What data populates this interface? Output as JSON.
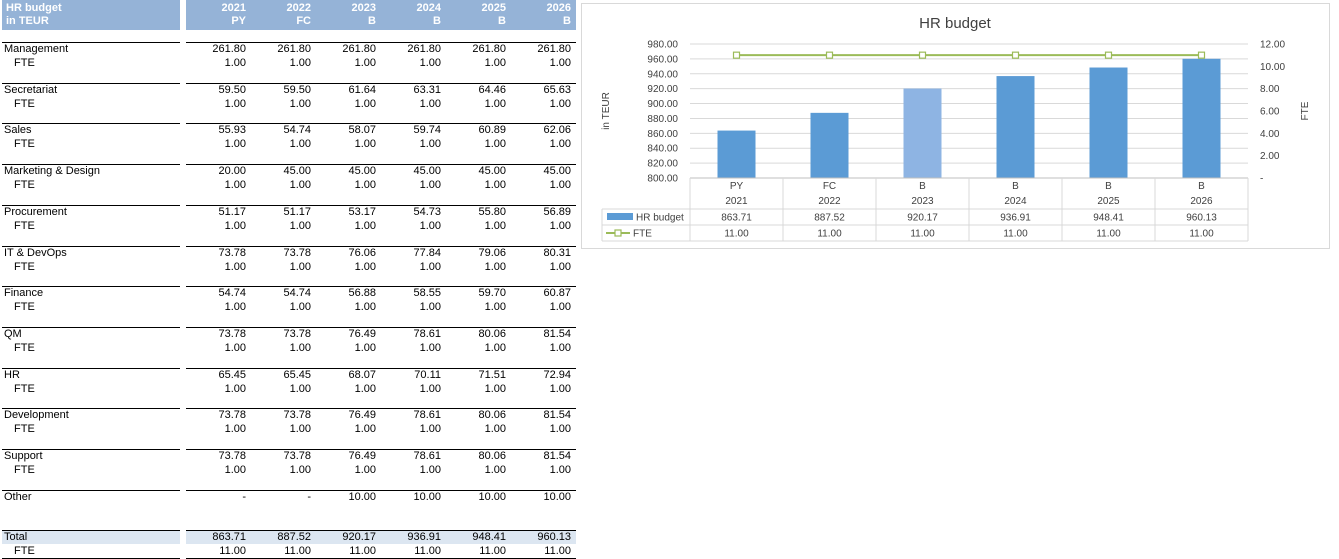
{
  "table": {
    "header_label_line1": "HR budget",
    "header_label_line2": "in TEUR",
    "years": [
      "2021",
      "2022",
      "2023",
      "2024",
      "2025",
      "2026"
    ],
    "types": [
      "PY",
      "FC",
      "B",
      "B",
      "B",
      "B"
    ],
    "rows": [
      {
        "label": "Management",
        "values": [
          "261.80",
          "261.80",
          "261.80",
          "261.80",
          "261.80",
          "261.80"
        ],
        "fte_label": "FTE",
        "fte": [
          "1.00",
          "1.00",
          "1.00",
          "1.00",
          "1.00",
          "1.00"
        ]
      },
      {
        "label": "Secretariat",
        "values": [
          "59.50",
          "59.50",
          "61.64",
          "63.31",
          "64.46",
          "65.63"
        ],
        "fte_label": "FTE",
        "fte": [
          "1.00",
          "1.00",
          "1.00",
          "1.00",
          "1.00",
          "1.00"
        ]
      },
      {
        "label": "Sales",
        "values": [
          "55.93",
          "54.74",
          "58.07",
          "59.74",
          "60.89",
          "62.06"
        ],
        "fte_label": "FTE",
        "fte": [
          "1.00",
          "1.00",
          "1.00",
          "1.00",
          "1.00",
          "1.00"
        ]
      },
      {
        "label": "Marketing & Design",
        "values": [
          "20.00",
          "45.00",
          "45.00",
          "45.00",
          "45.00",
          "45.00"
        ],
        "fte_label": "FTE",
        "fte": [
          "1.00",
          "1.00",
          "1.00",
          "1.00",
          "1.00",
          "1.00"
        ]
      },
      {
        "label": "Procurement",
        "values": [
          "51.17",
          "51.17",
          "53.17",
          "54.73",
          "55.80",
          "56.89"
        ],
        "fte_label": "FTE",
        "fte": [
          "1.00",
          "1.00",
          "1.00",
          "1.00",
          "1.00",
          "1.00"
        ]
      },
      {
        "label": "IT & DevOps",
        "values": [
          "73.78",
          "73.78",
          "76.06",
          "77.84",
          "79.06",
          "80.31"
        ],
        "fte_label": "FTE",
        "fte": [
          "1.00",
          "1.00",
          "1.00",
          "1.00",
          "1.00",
          "1.00"
        ]
      },
      {
        "label": "Finance",
        "values": [
          "54.74",
          "54.74",
          "56.88",
          "58.55",
          "59.70",
          "60.87"
        ],
        "fte_label": "FTE",
        "fte": [
          "1.00",
          "1.00",
          "1.00",
          "1.00",
          "1.00",
          "1.00"
        ]
      },
      {
        "label": "QM",
        "values": [
          "73.78",
          "73.78",
          "76.49",
          "78.61",
          "80.06",
          "81.54"
        ],
        "fte_label": "FTE",
        "fte": [
          "1.00",
          "1.00",
          "1.00",
          "1.00",
          "1.00",
          "1.00"
        ]
      },
      {
        "label": "HR",
        "values": [
          "65.45",
          "65.45",
          "68.07",
          "70.11",
          "71.51",
          "72.94"
        ],
        "fte_label": "FTE",
        "fte": [
          "1.00",
          "1.00",
          "1.00",
          "1.00",
          "1.00",
          "1.00"
        ]
      },
      {
        "label": "Development",
        "values": [
          "73.78",
          "73.78",
          "76.49",
          "78.61",
          "80.06",
          "81.54"
        ],
        "fte_label": "FTE",
        "fte": [
          "1.00",
          "1.00",
          "1.00",
          "1.00",
          "1.00",
          "1.00"
        ]
      },
      {
        "label": "Support",
        "values": [
          "73.78",
          "73.78",
          "76.49",
          "78.61",
          "80.06",
          "81.54"
        ],
        "fte_label": "FTE",
        "fte": [
          "1.00",
          "1.00",
          "1.00",
          "1.00",
          "1.00",
          "1.00"
        ]
      },
      {
        "label": "Other",
        "values": [
          "-",
          "-",
          "10.00",
          "10.00",
          "10.00",
          "10.00"
        ]
      }
    ],
    "total": {
      "label": "Total",
      "values": [
        "863.71",
        "887.52",
        "920.17",
        "936.91",
        "948.41",
        "960.13"
      ],
      "fte_label": "FTE",
      "fte": [
        "11.00",
        "11.00",
        "11.00",
        "11.00",
        "11.00",
        "11.00"
      ]
    }
  },
  "chart_data": {
    "type": "bar",
    "title": "HR budget",
    "ylabel": "in TEUR",
    "y2label": "FTE",
    "categories": [
      "PY 2021",
      "FC 2022",
      "B 2023",
      "B 2024",
      "B 2025",
      "B 2026"
    ],
    "category_line1": [
      "PY",
      "FC",
      "B",
      "B",
      "B",
      "B"
    ],
    "category_line2": [
      "2021",
      "2022",
      "2023",
      "2024",
      "2025",
      "2026"
    ],
    "ylim": [
      800,
      980
    ],
    "yticks": [
      "980.00",
      "960.00",
      "940.00",
      "920.00",
      "900.00",
      "880.00",
      "860.00",
      "840.00",
      "820.00",
      "800.00"
    ],
    "y2lim": [
      0,
      12
    ],
    "y2ticks": [
      "12.00",
      "10.00",
      "8.00",
      "6.00",
      "4.00",
      "2.00",
      "-"
    ],
    "series": [
      {
        "name": "HR budget",
        "kind": "bar",
        "color": "#5b9bd5",
        "highlight_color": "#8eb4e3",
        "highlight_index": 2,
        "values": [
          863.71,
          887.52,
          920.17,
          936.91,
          948.41,
          960.13
        ],
        "labels": [
          "863.71",
          "887.52",
          "920.17",
          "936.91",
          "948.41",
          "960.13"
        ]
      },
      {
        "name": "FTE",
        "kind": "line",
        "axis": "secondary",
        "color": "#9bbb59",
        "values": [
          11,
          11,
          11,
          11,
          11,
          11
        ],
        "labels": [
          "11.00",
          "11.00",
          "11.00",
          "11.00",
          "11.00",
          "11.00"
        ]
      }
    ],
    "legend": "data-table"
  }
}
